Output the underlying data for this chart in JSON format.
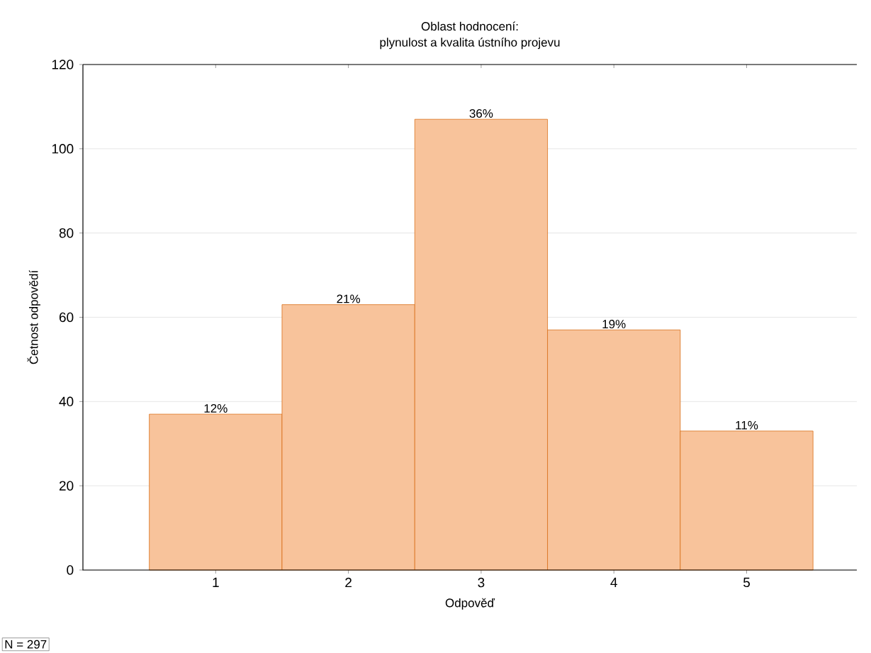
{
  "chart_data": {
    "type": "bar",
    "title": "Oblast hodnocení:",
    "subtitle": "plynulost a kvalita ústního projevu",
    "xlabel": "Odpověď",
    "ylabel": "Četnost odpovědí",
    "categories": [
      "1",
      "2",
      "3",
      "4",
      "5"
    ],
    "values": [
      37,
      63,
      107,
      57,
      33
    ],
    "color": "#f8c39b",
    "ylim": [
      0,
      120
    ],
    "yticks": [
      0,
      20,
      40,
      60,
      80,
      100,
      120
    ],
    "grid": "y",
    "annotations": [
      "N = 297",
      {
        "text": "12%",
        "x": "1",
        "y": 37
      },
      {
        "text": "21%",
        "x": "2",
        "y": 63
      },
      {
        "text": "36%",
        "x": "3",
        "y": 107
      },
      {
        "text": "19%",
        "x": "4",
        "y": 57
      },
      {
        "text": "11%",
        "x": "5",
        "y": 33
      }
    ]
  }
}
